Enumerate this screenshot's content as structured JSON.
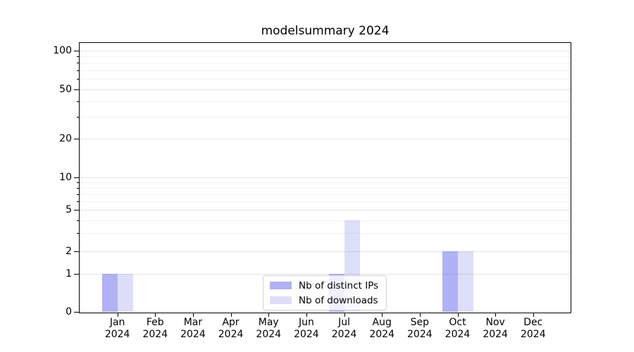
{
  "title": "modelsummary 2024",
  "chart_data": {
    "type": "bar",
    "title": "modelsummary 2024",
    "categories": [
      "Jan",
      "Feb",
      "Mar",
      "Apr",
      "May",
      "Jun",
      "Jul",
      "Aug",
      "Sep",
      "Oct",
      "Nov",
      "Dec"
    ],
    "x_year_label": "2024",
    "series": [
      {
        "name": "Nb of distinct IPs",
        "color": "rgba(70,70,230,0.42)",
        "values": [
          1,
          0,
          0,
          0,
          0,
          0,
          1,
          0,
          0,
          2,
          0,
          0
        ]
      },
      {
        "name": "Nb of downloads",
        "color": "rgba(70,70,230,0.18)",
        "values": [
          1,
          0,
          0,
          0,
          0,
          0,
          4,
          0,
          0,
          2,
          0,
          0
        ]
      }
    ],
    "y_axis": {
      "scale": "symlog",
      "major_ticks": [
        0,
        1,
        2,
        5,
        10,
        20,
        50,
        100
      ],
      "minor_ticks": [
        3,
        4,
        6,
        7,
        8,
        9,
        30,
        40,
        60,
        70,
        80,
        90
      ],
      "ylim": [
        0,
        115
      ]
    },
    "grid": "both",
    "legend": {
      "position": "lower center"
    },
    "colors": {
      "major_grid": "#e4e4e4",
      "minor_grid": "#f3f3f3",
      "axis": "#000000",
      "background": "#ffffff"
    }
  }
}
